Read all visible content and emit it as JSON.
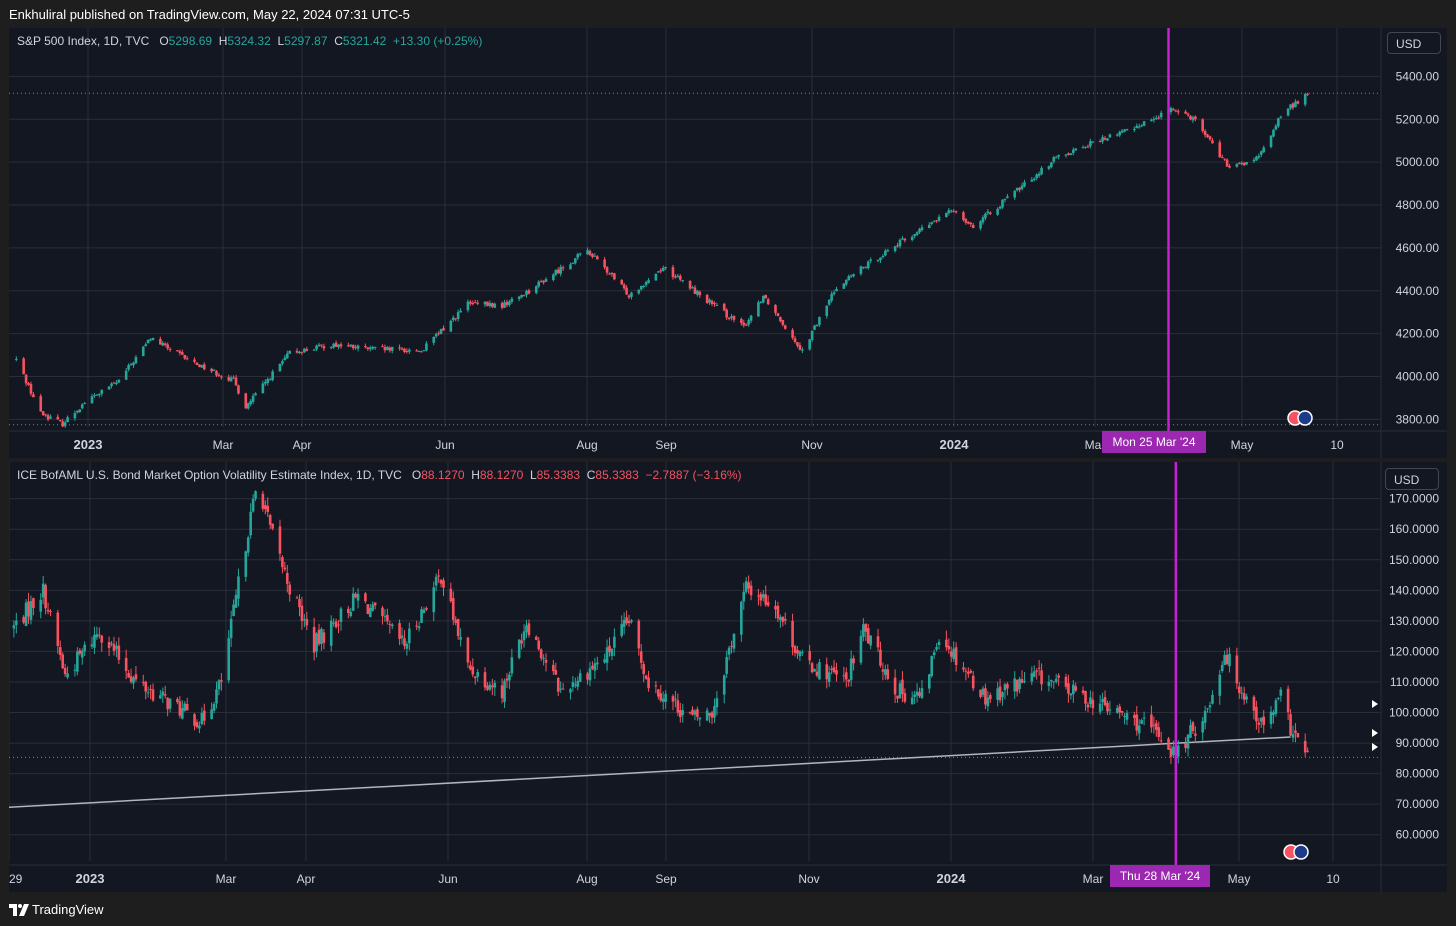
{
  "header": {
    "publisher": "Enkhuliral published on TradingView.com, May 22, 2024 07:31 UTC-5"
  },
  "footer": {
    "brand": "TradingView"
  },
  "colors": {
    "up": "#26a69a",
    "down": "#f7525f",
    "marker": "#c71fd1",
    "background": "#131722",
    "grid": "#2a2e39"
  },
  "panes": [
    {
      "legend": {
        "name": "S&P 500 Index, 1D, TVC",
        "o_label": "O",
        "o": "5298.69",
        "h_label": "H",
        "h": "5324.32",
        "l_label": "L",
        "l": "5297.87",
        "c_label": "C",
        "c": "5321.42",
        "change": "+13.30 (+0.25%)"
      },
      "currency": "USD",
      "crosshair_label": "Mon 25 Mar '24",
      "price_ticks": [
        "5400.00",
        "5200.00",
        "5000.00",
        "4800.00",
        "4600.00",
        "4400.00",
        "4200.00",
        "4000.00",
        "3800.00"
      ],
      "time_ticks": [
        "2023",
        "Mar",
        "Apr",
        "Jun",
        "Aug",
        "Sep",
        "Nov",
        "2024",
        "Mar",
        "May",
        "10"
      ]
    },
    {
      "legend": {
        "name": "ICE BofAML U.S. Bond Market Option Volatility Estimate Index, 1D, TVC",
        "o_label": "O",
        "o": "88.1270",
        "h_label": "H",
        "h": "88.1270",
        "l_label": "L",
        "l": "85.3383",
        "c_label": "C",
        "c": "85.3383",
        "change": "−2.7887 (−3.16%)"
      },
      "currency": "USD",
      "crosshair_label": "Thu 28 Mar '24",
      "price_ticks": [
        "170.0000",
        "160.0000",
        "150.0000",
        "140.0000",
        "130.0000",
        "120.0000",
        "110.0000",
        "100.0000",
        "90.0000",
        "80.0000",
        "70.0000",
        "60.0000"
      ],
      "time_ticks": [
        "29",
        "2023",
        "Mar",
        "Apr",
        "Jun",
        "Aug",
        "Sep",
        "Nov",
        "2024",
        "Mar",
        "May",
        "10"
      ]
    }
  ],
  "chart_data": [
    {
      "type": "candlestick",
      "title": "S&P 500 Index, 1D, TVC",
      "ylim": [
        3760,
        5500
      ],
      "xlim": [
        "2022-12-06",
        "2024-06-18"
      ],
      "grid": true,
      "reference_lines": [
        5321.42,
        3775
      ],
      "crosshair_date": "2024-03-25",
      "anchors": [
        [
          "2022-12-09",
          4080
        ],
        [
          "2022-12-19",
          3830
        ],
        [
          "2022-12-28",
          3780
        ],
        [
          "2023-01-06",
          3880
        ],
        [
          "2023-01-20",
          3980
        ],
        [
          "2023-02-02",
          4180
        ],
        [
          "2023-02-17",
          4080
        ],
        [
          "2023-03-08",
          3980
        ],
        [
          "2023-03-13",
          3860
        ],
        [
          "2023-03-31",
          4110
        ],
        [
          "2023-04-18",
          4150
        ],
        [
          "2023-05-01",
          4130
        ],
        [
          "2023-05-24",
          4120
        ],
        [
          "2023-06-12",
          4340
        ],
        [
          "2023-06-26",
          4330
        ],
        [
          "2023-07-07",
          4400
        ],
        [
          "2023-07-31",
          4590
        ],
        [
          "2023-08-17",
          4380
        ],
        [
          "2023-08-31",
          4510
        ],
        [
          "2023-09-21",
          4330
        ],
        [
          "2023-10-03",
          4230
        ],
        [
          "2023-10-11",
          4380
        ],
        [
          "2023-10-27",
          4120
        ],
        [
          "2023-11-10",
          4420
        ],
        [
          "2023-12-01",
          4590
        ],
        [
          "2023-12-28",
          4780
        ],
        [
          "2024-01-05",
          4700
        ],
        [
          "2024-02-09",
          5030
        ],
        [
          "2024-03-08",
          5150
        ],
        [
          "2024-03-28",
          5250
        ],
        [
          "2024-04-05",
          5200
        ],
        [
          "2024-04-19",
          4970
        ],
        [
          "2024-05-01",
          5020
        ],
        [
          "2024-05-10",
          5220
        ],
        [
          "2024-05-21",
          5321
        ]
      ]
    },
    {
      "type": "candlestick",
      "title": "ICE BofAML U.S. Bond Market Option Volatility Estimate Index, 1D, TVC",
      "ylim": [
        55,
        182
      ],
      "xlim": [
        "2022-12-06",
        "2024-06-18"
      ],
      "grid": true,
      "reference_lines": [
        85.3383
      ],
      "trendline": [
        [
          "2022-12-06",
          69
        ],
        [
          "2024-05-14",
          92
        ]
      ],
      "crosshair_date": "2024-03-28",
      "anchors": [
        [
          "2022-12-08",
          128
        ],
        [
          "2022-12-20",
          140
        ],
        [
          "2022-12-29",
          112
        ],
        [
          "2023-01-12",
          127
        ],
        [
          "2023-01-27",
          110
        ],
        [
          "2023-02-16",
          100
        ],
        [
          "2023-02-23",
          97
        ],
        [
          "2023-03-03",
          110
        ],
        [
          "2023-03-14",
          160
        ],
        [
          "2023-03-18",
          176
        ],
        [
          "2023-03-23",
          160
        ],
        [
          "2023-03-31",
          141
        ],
        [
          "2023-04-10",
          122
        ],
        [
          "2023-04-28",
          138
        ],
        [
          "2023-05-17",
          122
        ],
        [
          "2023-06-01",
          145
        ],
        [
          "2023-06-12",
          115
        ],
        [
          "2023-06-26",
          107
        ],
        [
          "2023-07-06",
          130
        ],
        [
          "2023-07-20",
          107
        ],
        [
          "2023-08-07",
          118
        ],
        [
          "2023-08-17",
          130
        ],
        [
          "2023-08-25",
          110
        ],
        [
          "2023-09-12",
          98
        ],
        [
          "2023-09-20",
          100
        ],
        [
          "2023-10-04",
          141
        ],
        [
          "2023-10-16",
          135
        ],
        [
          "2023-10-27",
          117
        ],
        [
          "2023-11-14",
          110
        ],
        [
          "2023-11-21",
          127
        ],
        [
          "2023-12-05",
          107
        ],
        [
          "2023-12-15",
          105
        ],
        [
          "2023-12-22",
          126
        ],
        [
          "2024-01-10",
          105
        ],
        [
          "2024-01-31",
          112
        ],
        [
          "2024-02-14",
          107
        ],
        [
          "2024-03-04",
          100
        ],
        [
          "2024-03-21",
          93
        ],
        [
          "2024-03-28",
          86
        ],
        [
          "2024-04-10",
          101
        ],
        [
          "2024-04-17",
          120
        ],
        [
          "2024-04-23",
          109
        ],
        [
          "2024-05-03",
          95
        ],
        [
          "2024-05-10",
          105
        ],
        [
          "2024-05-14",
          95
        ],
        [
          "2024-05-21",
          85
        ]
      ]
    }
  ]
}
